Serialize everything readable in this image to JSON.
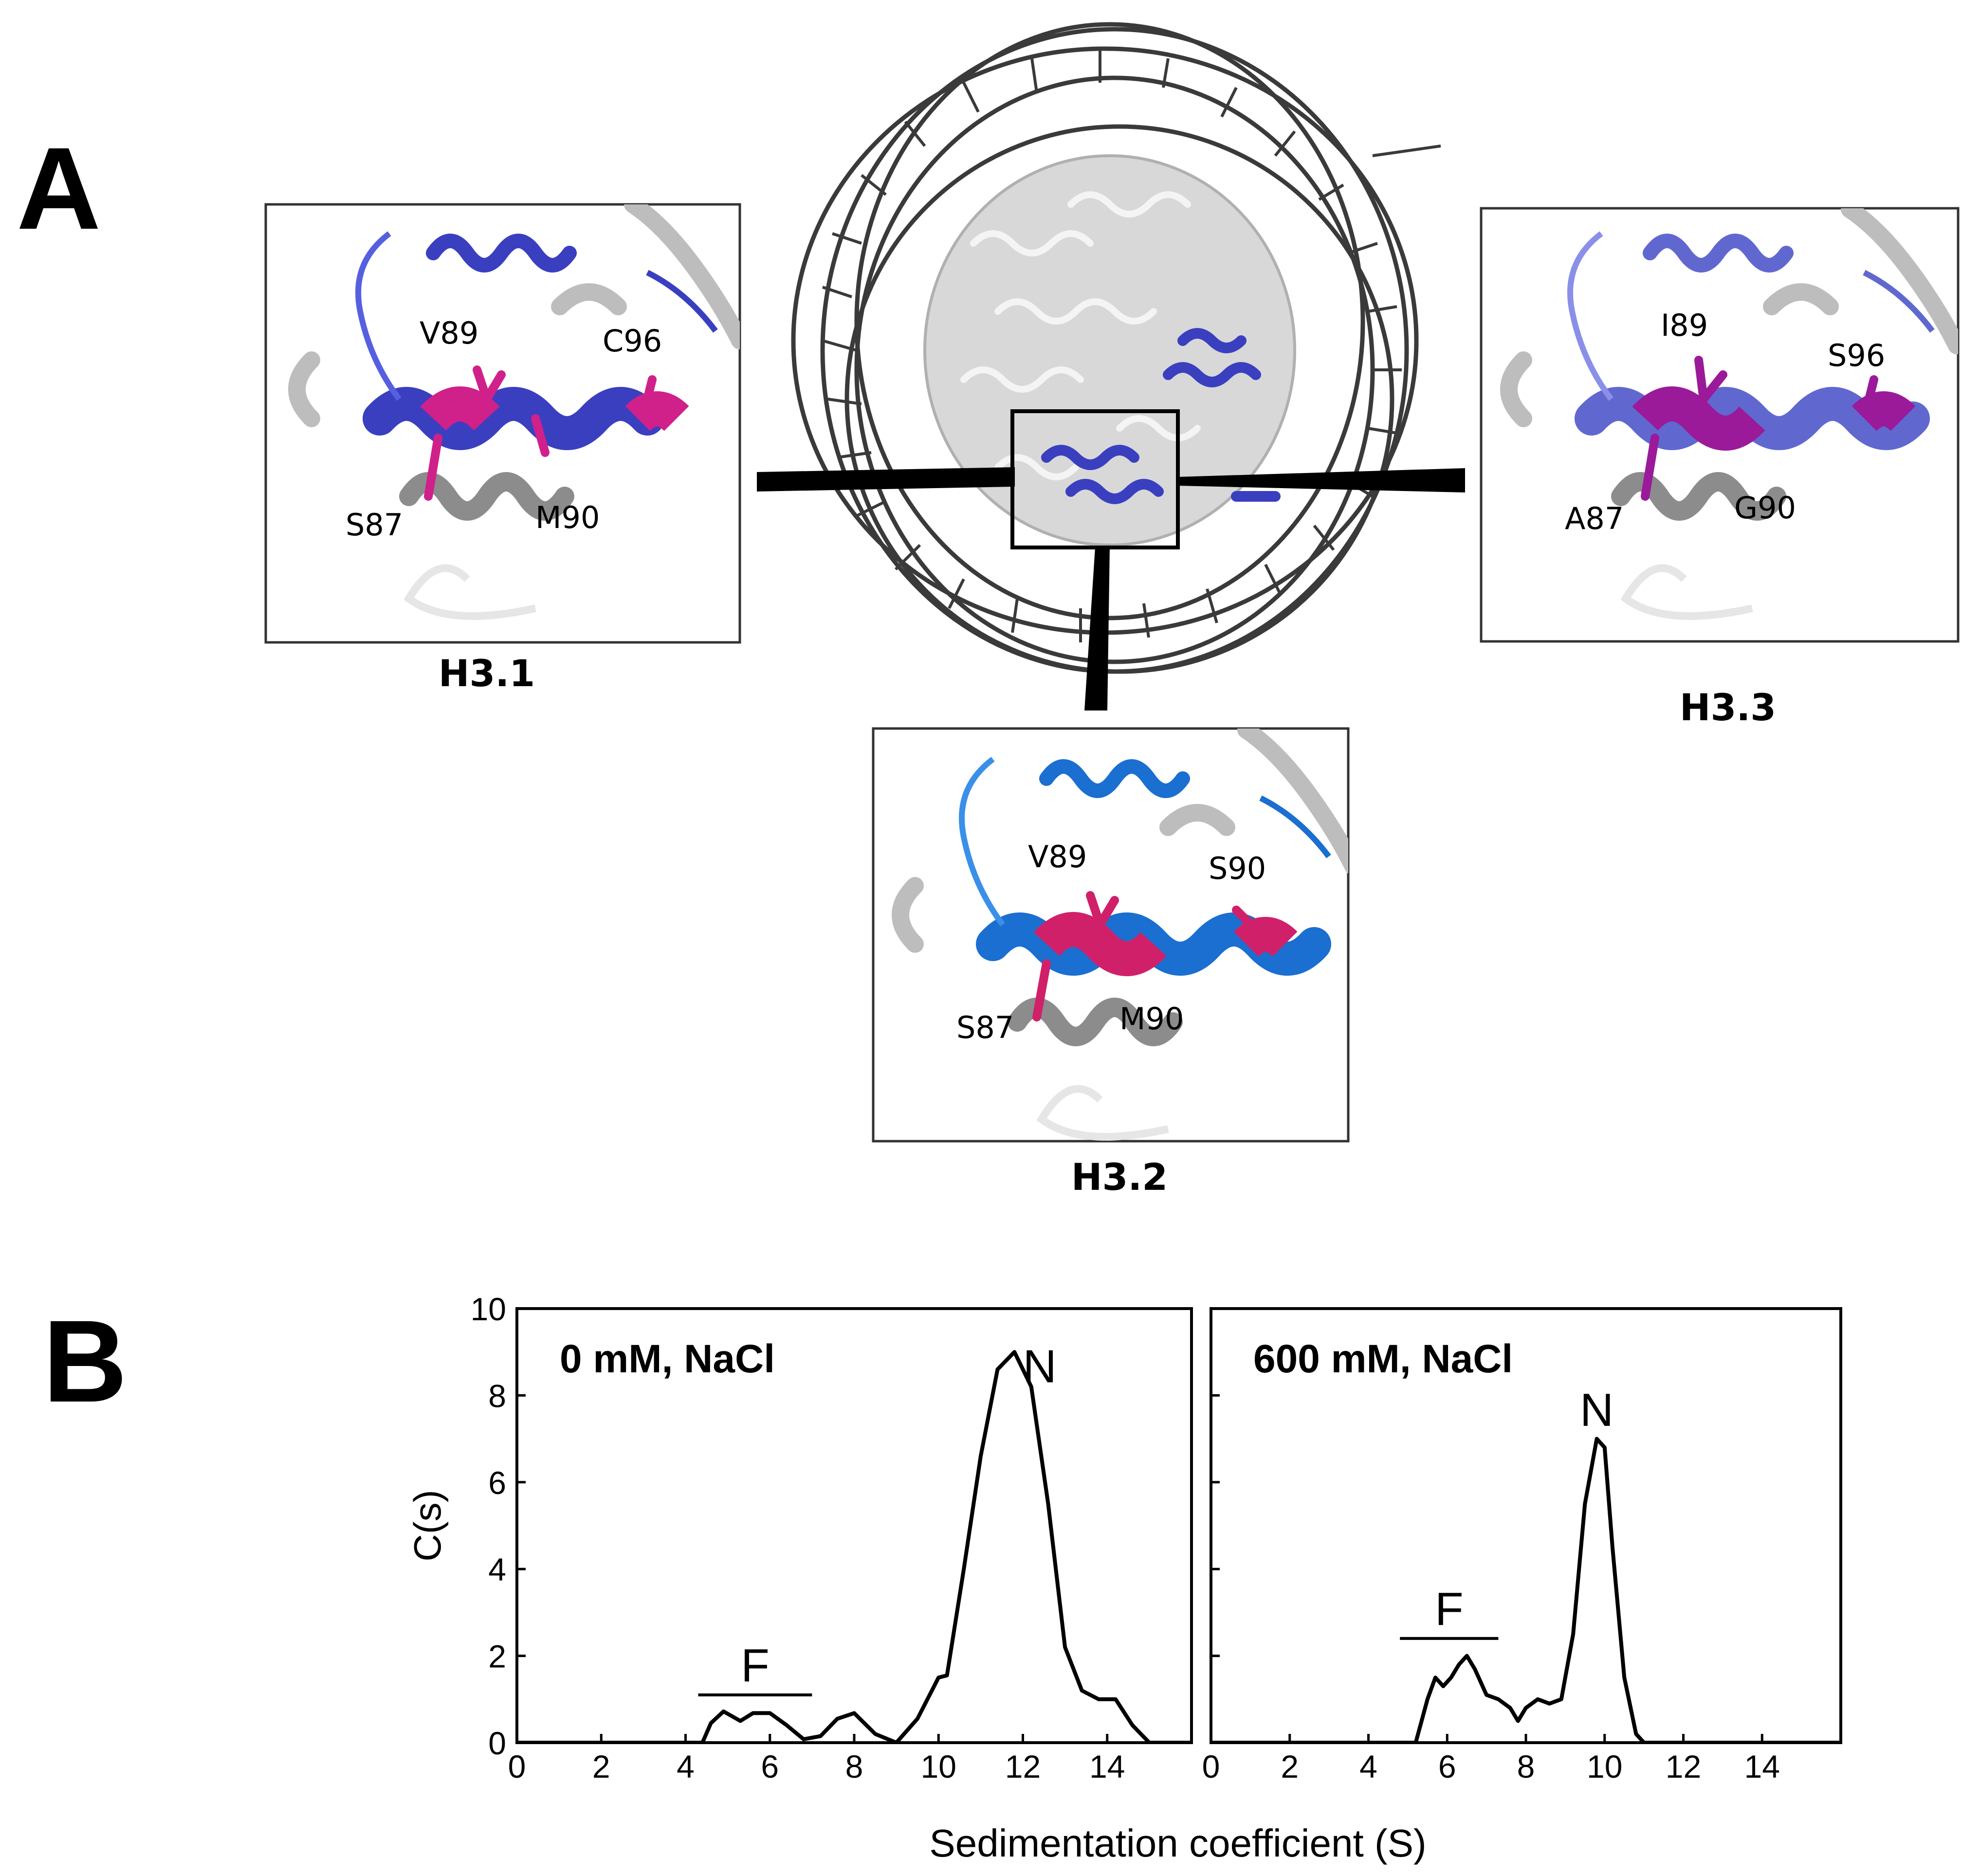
{
  "panel_a": {
    "label": "A",
    "insets": [
      {
        "id": "h3-1",
        "caption": "H3.1",
        "helix_color": "#3a3fc0",
        "residues": [
          "V89",
          "C96",
          "S87",
          "M90"
        ]
      },
      {
        "id": "h3-2",
        "caption": "H3.2",
        "helix_color": "#1a6fd0",
        "residues": [
          "V89",
          "S90",
          "S87",
          "M90"
        ]
      },
      {
        "id": "h3-3",
        "caption": "H3.3",
        "helix_color": "#6068d0",
        "residues": [
          "I89",
          "S96",
          "A87",
          "G90"
        ]
      }
    ],
    "highlight_color": "#d0208a"
  },
  "panel_b": {
    "label": "B",
    "y_axis_label": "C(s)",
    "x_axis_label": "Sedimentation coefficient (S)",
    "markers": {
      "fraction": "F",
      "nucleosome": "N"
    }
  },
  "chart_data": [
    {
      "type": "line",
      "title": "0 mM, NaCl",
      "xlabel": "Sedimentation coefficient (S)",
      "ylabel": "C(s)",
      "xlim": [
        0,
        16
      ],
      "ylim": [
        0,
        10
      ],
      "xticks": [
        0,
        2,
        4,
        6,
        8,
        10,
        12,
        14
      ],
      "yticks": [
        0,
        2,
        4,
        6,
        8,
        10
      ],
      "series": [
        {
          "x": [
            0,
            4.4,
            4.6,
            4.9,
            5.3,
            5.6,
            6.0,
            6.4,
            6.8,
            7.2,
            7.6,
            8.0,
            8.5,
            9.0,
            9.5,
            10.0,
            10.2,
            10.6,
            11.0,
            11.4,
            11.8,
            12.2,
            12.6,
            13.0,
            13.4,
            13.8,
            14.2,
            14.6,
            15.0,
            16.0
          ],
          "y": [
            0,
            0,
            0.45,
            0.72,
            0.5,
            0.68,
            0.68,
            0.4,
            0.08,
            0.15,
            0.55,
            0.68,
            0.2,
            0,
            0.55,
            1.5,
            1.55,
            4.0,
            6.6,
            8.6,
            9.0,
            8.2,
            5.5,
            2.2,
            1.2,
            1.0,
            1.0,
            0.4,
            0,
            0
          ]
        }
      ],
      "annotations": [
        {
          "text": "F",
          "x_from": 4.3,
          "x_to": 7.0,
          "y": 1.1
        },
        {
          "text": "N",
          "x": 12.4,
          "y": 8.3
        }
      ]
    },
    {
      "type": "line",
      "title": "600 mM, NaCl",
      "xlabel": "Sedimentation coefficient (S)",
      "ylabel": "C(s)",
      "xlim": [
        0,
        16
      ],
      "ylim": [
        0,
        10
      ],
      "xticks": [
        0,
        2,
        4,
        6,
        8,
        10,
        12,
        14
      ],
      "yticks": [
        0,
        2,
        4,
        6,
        8,
        10
      ],
      "series": [
        {
          "x": [
            0,
            5.2,
            5.5,
            5.7,
            5.9,
            6.1,
            6.3,
            6.5,
            6.7,
            7.0,
            7.3,
            7.6,
            7.8,
            8.0,
            8.3,
            8.6,
            8.9,
            9.2,
            9.5,
            9.8,
            10.0,
            10.2,
            10.5,
            10.8,
            11.0,
            16.0
          ],
          "y": [
            0,
            0,
            1.0,
            1.5,
            1.3,
            1.5,
            1.8,
            2.0,
            1.7,
            1.1,
            1.0,
            0.8,
            0.5,
            0.8,
            1.0,
            0.9,
            1.0,
            2.5,
            5.5,
            7.0,
            6.8,
            4.5,
            1.5,
            0.2,
            0,
            0
          ]
        }
      ],
      "annotations": [
        {
          "text": "F",
          "x_from": 4.8,
          "x_to": 7.3,
          "y": 2.4
        },
        {
          "text": "N",
          "x": 9.8,
          "y": 7.3
        }
      ]
    }
  ]
}
